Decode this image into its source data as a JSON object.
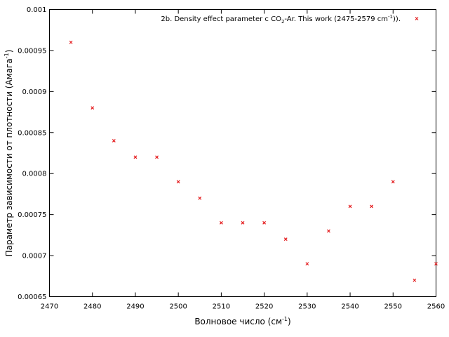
{
  "chart_data": {
    "type": "scatter",
    "title": "",
    "xlabel": {
      "main": "Волновое число (см",
      "sup": "-1",
      "end": ")"
    },
    "ylabel": {
      "main": "Параметр зависимости от плотности (Амага",
      "sup": "-1",
      "end": ")"
    },
    "xlim": [
      2470,
      2560
    ],
    "ylim": [
      0.00065,
      0.001
    ],
    "x_ticks": [
      2470,
      2480,
      2490,
      2500,
      2510,
      2520,
      2530,
      2540,
      2550,
      2560
    ],
    "x_tick_labels": [
      "2470",
      "2480",
      "2490",
      "2500",
      "2510",
      "2520",
      "2530",
      "2540",
      "2550",
      "2560"
    ],
    "y_ticks": [
      0.00065,
      0.0007,
      0.00075,
      0.0008,
      0.00085,
      0.0009,
      0.00095,
      0.001
    ],
    "y_tick_labels": [
      "0.00065",
      "0.0007",
      "0.00075",
      "0.0008",
      "0.00085",
      "0.0009",
      "0.00095",
      "0.001"
    ],
    "grid": false,
    "legend_position": "top-right",
    "series": [
      {
        "legend": {
          "pre": "2b. Density effect parameter c CO",
          "sub": "2",
          "mid": "-Ar. This work (2475-2579 cm",
          "sup": "-1",
          "end": "))."
        },
        "color": "#e41a1c",
        "marker": "cross",
        "x": [
          2475,
          2480,
          2485,
          2490,
          2495,
          2500,
          2505,
          2510,
          2515,
          2520,
          2525,
          2530,
          2535,
          2540,
          2545,
          2550,
          2555,
          2560
        ],
        "y": [
          0.00096,
          0.00088,
          0.00084,
          0.00082,
          0.00082,
          0.00079,
          0.00077,
          0.00074,
          0.00074,
          0.00074,
          0.00072,
          0.00069,
          0.00073,
          0.00076,
          0.00076,
          0.00079,
          0.00067,
          0.00069
        ]
      }
    ]
  }
}
